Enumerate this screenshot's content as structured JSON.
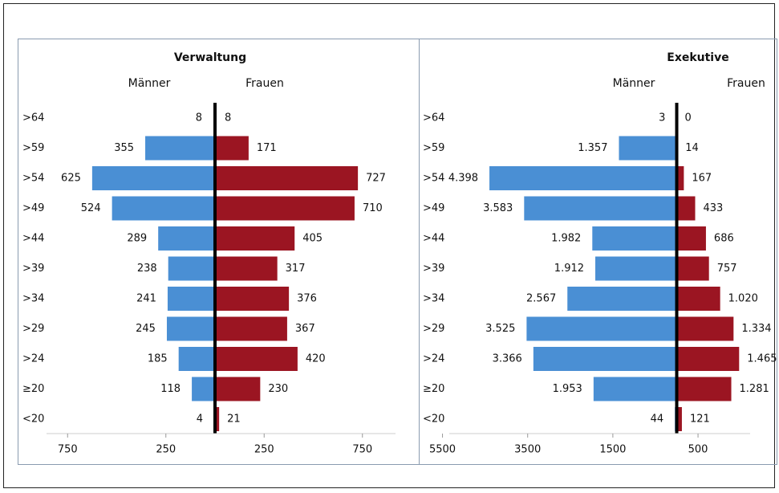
{
  "chart_data": [
    {
      "type": "pyramid",
      "title": "Verwaltung",
      "categories": [
        ">64",
        ">59",
        ">54",
        ">49",
        ">44",
        ">39",
        ">34",
        ">29",
        ">24",
        "≥20",
        "<20"
      ],
      "series": [
        {
          "name": "Männer",
          "color": "#4a8fd4",
          "side": "left",
          "values": [
            8,
            355,
            625,
            524,
            289,
            238,
            241,
            245,
            185,
            118,
            4
          ]
        },
        {
          "name": "Frauen",
          "color": "#9b1522",
          "side": "right",
          "values": [
            8,
            171,
            727,
            710,
            405,
            317,
            376,
            367,
            420,
            230,
            21
          ]
        }
      ],
      "xlim": [
        -1000,
        1000
      ],
      "xticks": [
        {
          "value": -750,
          "label": "750"
        },
        {
          "value": -250,
          "label": "250"
        },
        250,
        750
      ]
    },
    {
      "type": "pyramid",
      "title": "Exekutive",
      "categories": [
        ">64",
        ">59",
        ">54",
        ">49",
        ">44",
        ">39",
        ">34",
        ">29",
        ">24",
        "≥20",
        "<20"
      ],
      "series": [
        {
          "name": "Männer",
          "color": "#4a8fd4",
          "side": "left",
          "values": [
            3,
            1357,
            4398,
            3583,
            1982,
            1912,
            2567,
            3525,
            3366,
            1953,
            44
          ],
          "value_labels": [
            "3",
            "1.357",
            "4.398",
            "3.583",
            "1.982",
            "1.912",
            "2.567",
            "3.525",
            "3.366",
            "1.953",
            "44"
          ]
        },
        {
          "name": "Frauen",
          "color": "#9b1522",
          "side": "right",
          "values": [
            0,
            14,
            167,
            433,
            686,
            757,
            1020,
            1334,
            1465,
            1281,
            121
          ],
          "value_labels": [
            "0",
            "14",
            "167",
            "433",
            "686",
            "757",
            "1.020",
            "1.334",
            "1.465",
            "1.281",
            "121"
          ]
        }
      ],
      "xlim": [
        -6000,
        2100
      ],
      "xticks": [
        {
          "value": -5500,
          "label": "5500"
        },
        {
          "value": -3500,
          "label": "3500"
        },
        {
          "value": -1500,
          "label": "1500"
        },
        500
      ]
    }
  ]
}
